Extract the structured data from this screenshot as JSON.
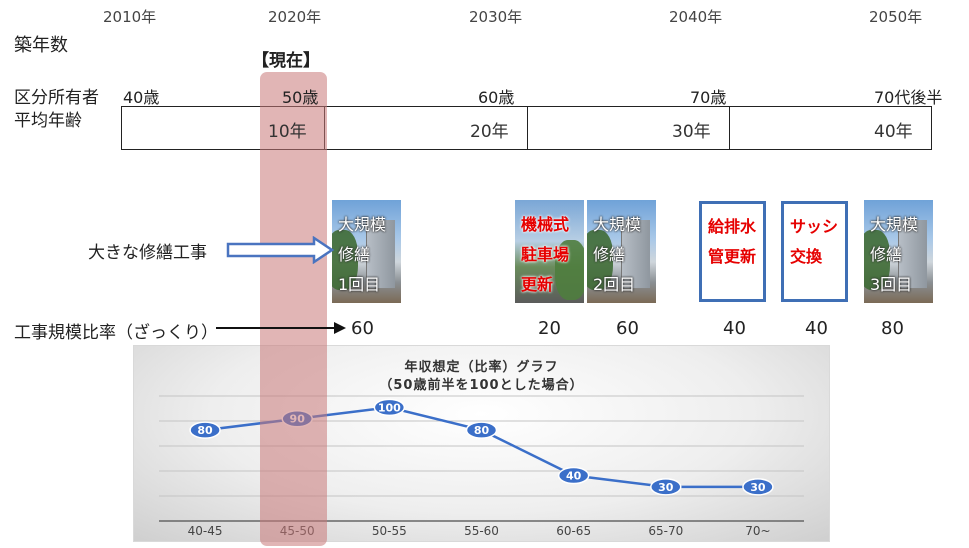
{
  "years": [
    "2010年",
    "2020年",
    "2030年",
    "2040年",
    "2050年"
  ],
  "labels": {
    "chiku": "築年数",
    "owner_age_line1": "区分所有者",
    "owner_age_line2": "平均年齢",
    "genzai": "【現在】",
    "repair": "大きな修繕工事",
    "ratio": "工事規模比率（ざっくり）"
  },
  "ages": [
    "40歳",
    "50歳",
    "60歳",
    "70歳",
    "70代後半"
  ],
  "timeline_years": [
    "10年",
    "20年",
    "30年",
    "40年"
  ],
  "works": [
    {
      "text": "大規模\n修繕\n1回目",
      "style": "photo"
    },
    {
      "text": "機械式\n駐車場\n更新",
      "style": "photo-red"
    },
    {
      "text": "大規模\n修繕\n2回目",
      "style": "photo"
    },
    {
      "text": "給排水\n管更新",
      "style": "frame"
    },
    {
      "text": "サッシ\n交換",
      "style": "frame"
    },
    {
      "text": "大規模\n修繕\n3回目",
      "style": "photo"
    }
  ],
  "ratios": [
    "60",
    "20",
    "60",
    "40",
    "40",
    "80"
  ],
  "chart_data": {
    "type": "line",
    "title": "年収想定（比率）グラフ",
    "subtitle": "（50歳前半を100とした場合）",
    "categories": [
      "40-45",
      "45-50",
      "50-55",
      "55-60",
      "60-65",
      "65-70",
      "70~"
    ],
    "values": [
      80,
      90,
      100,
      80,
      40,
      30,
      30
    ],
    "ylim": [
      0,
      110
    ],
    "grid": true,
    "line_color": "#3b6fc9"
  }
}
